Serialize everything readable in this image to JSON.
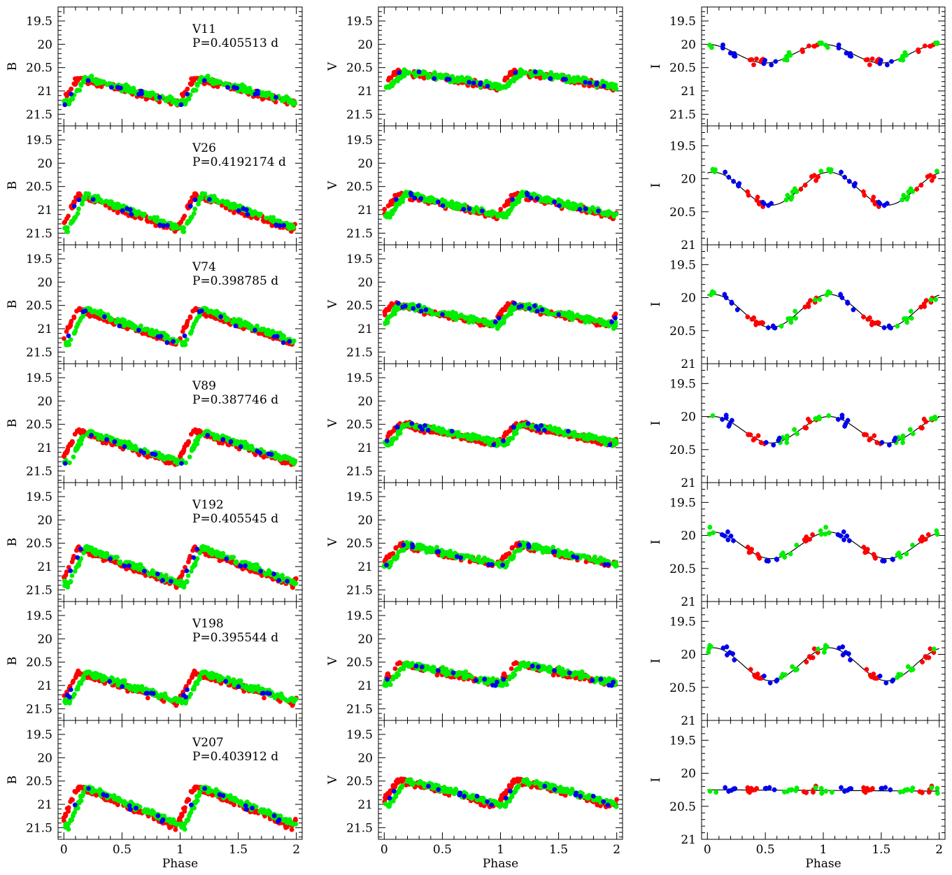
{
  "figure": {
    "x_axis_label": "Phase",
    "band_labels": [
      "B",
      "V",
      "I"
    ],
    "x_ticks": [
      "0",
      "0.5",
      "1",
      "1.5",
      "2"
    ],
    "y_ticks_BV": [
      "19.5",
      "20",
      "20.5",
      "21",
      "21.5"
    ],
    "y_ticks_I_top": [
      "19.5",
      "20",
      "20.5",
      "21",
      "21.5"
    ],
    "y_ticks_I_rest": [
      "19.5",
      "20",
      "20.5",
      "21"
    ],
    "colors": {
      "series_red": "#ff0000",
      "series_green": "#00ee00",
      "series_blue": "#0000ee",
      "fit_line": "#000000"
    }
  },
  "chart_data": [
    {
      "type": "scatter",
      "star": "V11",
      "period_label": "P=0.405513 d",
      "xlabel": "Phase",
      "xlim": [
        -0.05,
        2.05
      ],
      "B": {
        "ylim": [
          21.75,
          19.2
        ],
        "mean": 21.0,
        "amp": 0.55,
        "phase_max": 1.0
      },
      "V": {
        "ylim": [
          21.75,
          19.2
        ],
        "mean": 20.75,
        "amp": 0.35,
        "phase_max": 1.0
      },
      "I": {
        "ylim": [
          21.75,
          19.2
        ],
        "mean": 20.2,
        "amp": 0.2,
        "phase_max": 0.0,
        "fit": "sinusoid"
      }
    },
    {
      "type": "scatter",
      "star": "V26",
      "period_label": "P=0.4192174 d",
      "xlabel": "Phase",
      "xlim": [
        -0.05,
        2.05
      ],
      "B": {
        "ylim": [
          21.75,
          19.2
        ],
        "mean": 21.05,
        "amp": 0.75,
        "phase_max": 1.0
      },
      "V": {
        "ylim": [
          21.75,
          19.2
        ],
        "mean": 20.9,
        "amp": 0.5,
        "phase_max": 1.0
      },
      "I": {
        "ylim": [
          21.0,
          19.2
        ],
        "mean": 20.15,
        "amp": 0.25,
        "phase_max": 0.05,
        "fit": "sinusoid"
      }
    },
    {
      "type": "scatter",
      "star": "V74",
      "period_label": "P=0.398785 d",
      "xlabel": "Phase",
      "xlim": [
        -0.05,
        2.05
      ],
      "B": {
        "ylim": [
          21.75,
          19.2
        ],
        "mean": 20.95,
        "amp": 0.75,
        "phase_max": 1.0
      },
      "V": {
        "ylim": [
          21.75,
          19.2
        ],
        "mean": 20.7,
        "amp": 0.45,
        "phase_max": 0.95
      },
      "I": {
        "ylim": [
          21.0,
          19.2
        ],
        "mean": 20.2,
        "amp": 0.25,
        "phase_max": 0.05,
        "fit": "sinusoid"
      }
    },
    {
      "type": "scatter",
      "star": "V89",
      "period_label": "P=0.387746 d",
      "xlabel": "Phase",
      "xlim": [
        -0.05,
        2.05
      ],
      "B": {
        "ylim": [
          21.75,
          19.2
        ],
        "mean": 21.0,
        "amp": 0.7,
        "phase_max": 1.0
      },
      "V": {
        "ylim": [
          21.75,
          19.2
        ],
        "mean": 20.7,
        "amp": 0.45,
        "phase_max": 1.0
      },
      "I": {
        "ylim": [
          21.0,
          19.2
        ],
        "mean": 20.2,
        "amp": 0.2,
        "phase_max": 0.05,
        "fit": "sinusoid"
      }
    },
    {
      "type": "scatter",
      "star": "V192",
      "period_label": "P=0.405545 d",
      "xlabel": "Phase",
      "xlim": [
        -0.05,
        2.05
      ],
      "B": {
        "ylim": [
          21.75,
          19.2
        ],
        "mean": 21.0,
        "amp": 0.8,
        "phase_max": 1.0
      },
      "V": {
        "ylim": [
          21.75,
          19.2
        ],
        "mean": 20.75,
        "amp": 0.45,
        "phase_max": 1.0
      },
      "I": {
        "ylim": [
          21.0,
          19.2
        ],
        "mean": 20.15,
        "amp": 0.2,
        "phase_max": 0.05,
        "fit": "sinusoid"
      }
    },
    {
      "type": "scatter",
      "star": "V198",
      "period_label": "P=0.395544 d",
      "xlabel": "Phase",
      "xlim": [
        -0.05,
        2.05
      ],
      "B": {
        "ylim": [
          21.75,
          19.2
        ],
        "mean": 21.05,
        "amp": 0.65,
        "phase_max": 1.0
      },
      "V": {
        "ylim": [
          21.75,
          19.2
        ],
        "mean": 20.75,
        "amp": 0.45,
        "phase_max": 1.0
      },
      "I": {
        "ylim": [
          21.0,
          19.2
        ],
        "mean": 20.15,
        "amp": 0.25,
        "phase_max": 0.05,
        "fit": "sinusoid"
      }
    },
    {
      "type": "scatter",
      "star": "V207",
      "period_label": "P=0.403912 d",
      "xlabel": "Phase",
      "xlim": [
        -0.05,
        2.05
      ],
      "B": {
        "ylim": [
          21.75,
          19.2
        ],
        "mean": 21.05,
        "amp": 0.85,
        "phase_max": 1.0
      },
      "V": {
        "ylim": [
          21.75,
          19.2
        ],
        "mean": 20.75,
        "amp": 0.55,
        "phase_max": 1.0
      },
      "I": {
        "ylim": [
          21.0,
          19.2
        ],
        "mean": 20.25,
        "amp": 0.0,
        "phase_max": 0.0,
        "fit": "flat"
      }
    }
  ]
}
